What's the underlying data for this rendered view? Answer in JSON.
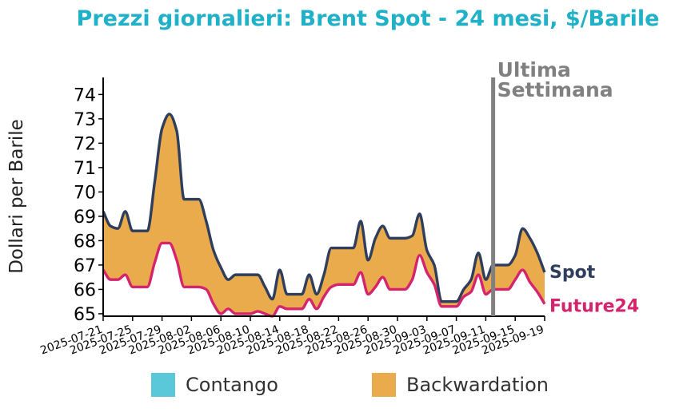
{
  "chart_data": {
    "type": "area",
    "title": "Prezzi giornalieri: Brent Spot - 24 mesi, $/Barile",
    "ylabel": "Dollari per Barile",
    "ylim": [
      64.9,
      74.7
    ],
    "yticks": [
      65,
      66,
      67,
      68,
      69,
      70,
      71,
      72,
      73,
      74
    ],
    "x_start": "2025-07-21",
    "x_end": "2025-09-19",
    "xtick_labels": [
      "2025-07-21",
      "2025-07-25",
      "2025-07-29",
      "2025-08-02",
      "2025-08-06",
      "2025-08-10",
      "2025-08-14",
      "2025-08-18",
      "2025-08-22",
      "2025-08-26",
      "2025-08-30",
      "2025-09-03",
      "2025-09-07",
      "2025-09-11",
      "2025-09-15",
      "2025-09-19"
    ],
    "x": [
      "2025-07-21",
      "2025-07-22",
      "2025-07-23",
      "2025-07-24",
      "2025-07-25",
      "2025-07-26",
      "2025-07-27",
      "2025-07-28",
      "2025-07-29",
      "2025-07-30",
      "2025-07-31",
      "2025-08-01",
      "2025-08-02",
      "2025-08-03",
      "2025-08-04",
      "2025-08-05",
      "2025-08-06",
      "2025-08-07",
      "2025-08-08",
      "2025-08-09",
      "2025-08-10",
      "2025-08-11",
      "2025-08-12",
      "2025-08-13",
      "2025-08-14",
      "2025-08-15",
      "2025-08-16",
      "2025-08-17",
      "2025-08-18",
      "2025-08-19",
      "2025-08-20",
      "2025-08-21",
      "2025-08-22",
      "2025-08-23",
      "2025-08-24",
      "2025-08-25",
      "2025-08-26",
      "2025-08-27",
      "2025-08-28",
      "2025-08-29",
      "2025-08-30",
      "2025-08-31",
      "2025-09-01",
      "2025-09-02",
      "2025-09-03",
      "2025-09-04",
      "2025-09-05",
      "2025-09-06",
      "2025-09-07",
      "2025-09-08",
      "2025-09-09",
      "2025-09-10",
      "2025-09-11",
      "2025-09-12",
      "2025-09-13",
      "2025-09-14",
      "2025-09-15",
      "2025-09-16",
      "2025-09-17",
      "2025-09-18",
      "2025-09-19"
    ],
    "series": [
      {
        "name": "Spot",
        "color": "#2f3e5c",
        "values": [
          69.2,
          68.6,
          68.5,
          69.2,
          68.4,
          68.4,
          68.4,
          70.4,
          72.6,
          73.2,
          72.5,
          69.7,
          69.7,
          69.7,
          68.8,
          67.6,
          66.9,
          66.4,
          66.6,
          66.6,
          66.6,
          66.6,
          66.1,
          65.6,
          66.8,
          65.8,
          65.8,
          65.8,
          66.6,
          65.8,
          66.6,
          67.7,
          67.7,
          67.7,
          67.7,
          68.8,
          67.2,
          68.1,
          68.6,
          68.1,
          68.1,
          68.1,
          68.2,
          69.1,
          67.6,
          67.0,
          65.5,
          65.5,
          65.5,
          66.0,
          66.4,
          67.5,
          66.4,
          67.0,
          67.0,
          67.0,
          67.4,
          68.5,
          68.1,
          67.5,
          66.7
        ]
      },
      {
        "name": "Future24",
        "color": "#d4246e",
        "values": [
          66.8,
          66.4,
          66.4,
          66.6,
          66.1,
          66.1,
          66.1,
          67.1,
          67.9,
          67.9,
          67.2,
          66.1,
          66.1,
          66.1,
          66.0,
          65.4,
          65.0,
          65.2,
          65.0,
          65.0,
          65.0,
          65.1,
          65.0,
          64.9,
          65.3,
          65.2,
          65.2,
          65.2,
          65.6,
          65.2,
          65.7,
          66.1,
          66.2,
          66.2,
          66.2,
          66.7,
          65.8,
          66.1,
          66.5,
          66.0,
          66.0,
          66.0,
          66.4,
          67.4,
          66.7,
          66.2,
          65.3,
          65.3,
          65.3,
          65.7,
          65.9,
          66.6,
          65.8,
          66.0,
          66.0,
          66.0,
          66.4,
          66.8,
          66.3,
          65.9,
          65.4
        ]
      }
    ],
    "fill_colors": {
      "contango": "#5bc8d9",
      "backwardation": "#e9ab4b"
    },
    "legend": {
      "placement": "bottom",
      "items": [
        "Contango",
        "Backwardation"
      ]
    },
    "annotation": {
      "date": "2025-09-12",
      "lines": [
        "Ultima",
        "Settimana"
      ],
      "color": "#808080"
    },
    "series_labels": [
      "Spot",
      "Future24"
    ],
    "grid": false
  }
}
